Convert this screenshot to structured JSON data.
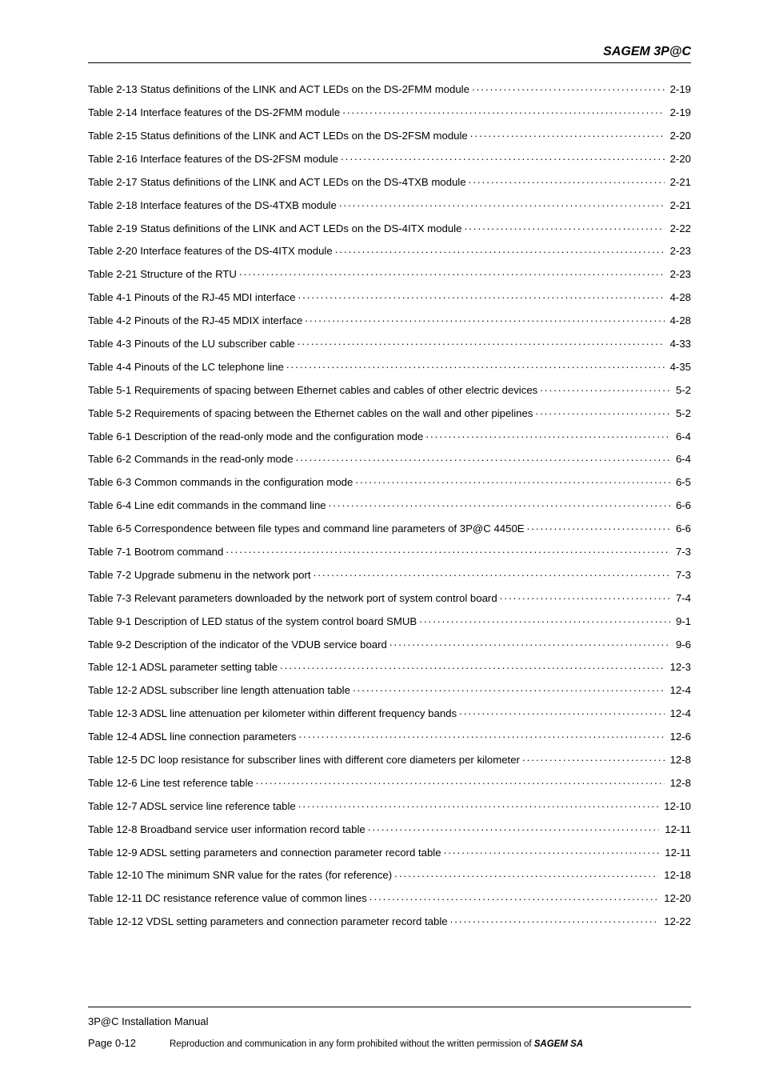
{
  "header": {
    "title": "SAGEM 3P@C"
  },
  "toc": {
    "entries": [
      {
        "title": "Table 2-13 Status definitions of the LINK and ACT LEDs on the DS-2FMM module",
        "page": "2-19"
      },
      {
        "title": "Table 2-14 Interface features of the DS-2FMM module",
        "page": "2-19"
      },
      {
        "title": "Table 2-15 Status definitions of the LINK and ACT LEDs on the DS-2FSM module",
        "page": "2-20"
      },
      {
        "title": "Table 2-16 Interface features of the DS-2FSM module",
        "page": "2-20"
      },
      {
        "title": "Table 2-17 Status definitions of the LINK and ACT LEDs on the DS-4TXB  module",
        "page": "2-21"
      },
      {
        "title": "Table 2-18 Interface features of the DS-4TXB module",
        "page": "2-21"
      },
      {
        "title": "Table 2-19 Status definitions of the LINK and ACT LEDs on the DS-4ITX module",
        "page": "2-22"
      },
      {
        "title": "Table 2-20 Interface features of the DS-4ITX module",
        "page": "2-23"
      },
      {
        "title": "Table 2-21 Structure of the RTU",
        "page": "2-23"
      },
      {
        "title": "Table 4-1 Pinouts of the RJ-45 MDI interface",
        "page": "4-28"
      },
      {
        "title": "Table 4-2 Pinouts of the RJ-45 MDIX interface",
        "page": "4-28"
      },
      {
        "title": "Table 4-3 Pinouts of the LU subscriber cable",
        "page": "4-33"
      },
      {
        "title": "Table 4-4 Pinouts of the LC telephone line",
        "page": "4-35"
      },
      {
        "title": "Table 5-1 Requirements of spacing between Ethernet cables and cables of other electric devices",
        "page": "5-2"
      },
      {
        "title": "Table 5-2 Requirements of spacing between the Ethernet cables on the wall and other pipelines",
        "page": "5-2"
      },
      {
        "title": "Table 6-1 Description of the read-only mode and the configuration mode",
        "page": "6-4"
      },
      {
        "title": "Table 6-2 Commands in the read-only mode",
        "page": "6-4"
      },
      {
        "title": "Table 6-3 Common commands in the configuration mode",
        "page": "6-5"
      },
      {
        "title": "Table 6-4 Line edit commands in the command line",
        "page": "6-6"
      },
      {
        "title": "Table 6-5 Correspondence between file types and command line parameters of 3P@C 4450E",
        "page": "6-6"
      },
      {
        "title": "Table 7-1 Bootrom command",
        "page": "7-3"
      },
      {
        "title": "Table 7-2 Upgrade submenu in the network port",
        "page": "7-3"
      },
      {
        "title": "Table 7-3 Relevant parameters downloaded by the network port of system control board",
        "page": "7-4"
      },
      {
        "title": "Table 9-1 Description of LED status of the system control board SMUB",
        "page": "9-1"
      },
      {
        "title": "Table 9-2 Description of the indicator of the VDUB service board",
        "page": "9-6"
      },
      {
        "title": "Table 12-1 ADSL parameter setting table",
        "page": "12-3"
      },
      {
        "title": "Table 12-2 ADSL subscriber line length attenuation table",
        "page": "12-4"
      },
      {
        "title": "Table 12-3 ADSL line attenuation per kilometer within different frequency bands",
        "page": "12-4"
      },
      {
        "title": "Table 12-4 ADSL line connection parameters",
        "page": "12-6"
      },
      {
        "title": "Table 12-5 DC loop resistance for subscriber lines with different core diameters per kilometer",
        "page": "12-8"
      },
      {
        "title": "Table 12-6 Line test reference table",
        "page": "12-8"
      },
      {
        "title": "Table 12-7 ADSL service line reference table",
        "page": "12-10"
      },
      {
        "title": "Table 12-8 Broadband service user information record table",
        "page": "12-11"
      },
      {
        "title": "Table 12-9 ADSL setting parameters and connection parameter record table",
        "page": "12-11"
      },
      {
        "title": "Table 12-10 The minimum SNR value for the rates (for reference)",
        "page": "12-18"
      },
      {
        "title": "Table 12-11 DC resistance reference value of common lines",
        "page": "12-20"
      },
      {
        "title": "Table 12-12 VDSL setting parameters and connection parameter record table",
        "page": "12-22"
      }
    ]
  },
  "footer": {
    "manual_title": "3P@C Installation Manual",
    "page_label": "Page 0-12",
    "reproduction_note_prefix": "Reproduction and communication in any form prohibited without the written permission of ",
    "reproduction_note_bold": "SAGEM SA"
  }
}
